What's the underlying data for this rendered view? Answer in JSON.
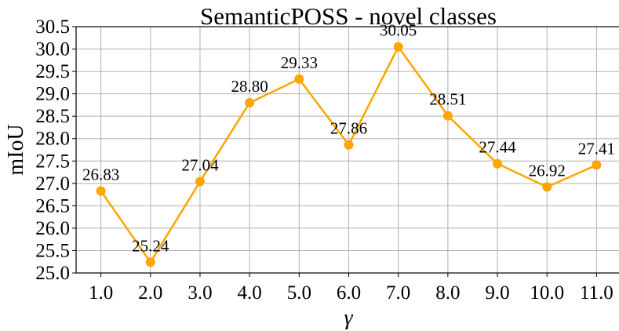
{
  "chart_data": {
    "type": "line",
    "title": "SemanticPOSS - novel classes",
    "xlabel": "γ",
    "ylabel": "mIoU",
    "x": [
      1.0,
      2.0,
      3.0,
      4.0,
      5.0,
      6.0,
      7.0,
      8.0,
      9.0,
      10.0,
      11.0
    ],
    "x_tick_labels": [
      "1.0",
      "2.0",
      "3.0",
      "4.0",
      "5.0",
      "6.0",
      "7.0",
      "8.0",
      "9.0",
      "10.0",
      "11.0"
    ],
    "series": [
      {
        "values": [
          26.83,
          25.24,
          27.04,
          28.8,
          29.33,
          27.86,
          30.05,
          28.51,
          27.44,
          26.92,
          27.41
        ],
        "labels": [
          "26.83",
          "25.24",
          "27.04",
          "28.80",
          "29.33",
          "27.86",
          "30.05",
          "28.51",
          "27.44",
          "26.92",
          "27.41"
        ],
        "color": "#FFA500"
      }
    ],
    "ylim": [
      25.0,
      30.5
    ],
    "y_ticks": [
      "25.0",
      "25.5",
      "26.0",
      "26.5",
      "27.0",
      "27.5",
      "28.0",
      "28.5",
      "29.0",
      "29.5",
      "30.0",
      "30.5"
    ],
    "grid": true,
    "legend": false
  }
}
